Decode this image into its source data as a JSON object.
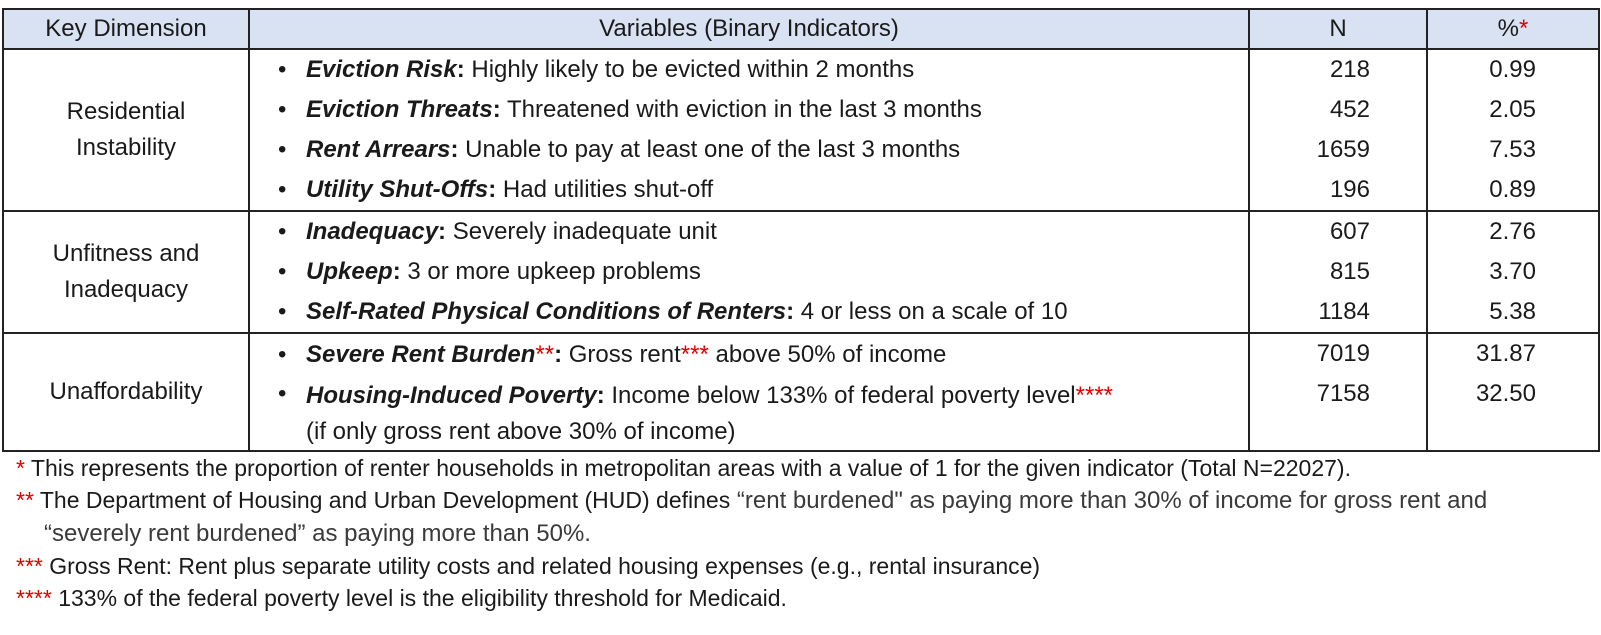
{
  "headers": {
    "key_dimension": "Key Dimension",
    "variables": "Variables (Binary Indicators)",
    "n": "N",
    "pct": "%",
    "pct_star": "*"
  },
  "groups": [
    {
      "dimension_line1": "Residential",
      "dimension_line2": "Instability",
      "rows": [
        {
          "term": "Eviction Risk",
          "desc": " Highly likely to be evicted within 2 months",
          "n": "218",
          "pct": "0.99"
        },
        {
          "term": "Eviction Threats",
          "desc": " Threatened with eviction in the last 3 months",
          "n": "452",
          "pct": "2.05"
        },
        {
          "term": "Rent Arrears",
          "desc": " Unable to pay at least one of the last 3 months",
          "n": "1659",
          "pct": "7.53"
        },
        {
          "term": "Utility Shut-Offs",
          "desc": " Had utilities shut-off",
          "n": "196",
          "pct": "0.89"
        }
      ]
    },
    {
      "dimension_line1": "Unfitness and",
      "dimension_line2": "Inadequacy",
      "rows": [
        {
          "term": "Inadequacy",
          "desc": " Severely inadequate unit",
          "n": "607",
          "pct": "2.76"
        },
        {
          "term": "Upkeep",
          "desc": " 3 or more upkeep problems",
          "n": "815",
          "pct": "3.70"
        },
        {
          "term": "Self-Rated Physical Conditions of Renters",
          "desc": " 4 or less on a scale of 10",
          "n": "1184",
          "pct": "5.38"
        }
      ]
    },
    {
      "dimension_line1": "Unaffordability",
      "rows": [
        {
          "term": "Severe Rent Burden",
          "term_star": "**",
          "desc_a": " Gross rent",
          "desc_star": "***",
          "desc_b": " above 50% of income",
          "n": "7019",
          "pct": "31.87"
        },
        {
          "term": "Housing-Induced Poverty",
          "desc_a": " Income below 133% of federal poverty level",
          "desc_star": "****",
          "desc_line2": "(if only gross rent above 30% of income)",
          "n": "7158",
          "pct": "32.50"
        }
      ]
    }
  ],
  "bullet": "•",
  "colon": ":",
  "notes": [
    {
      "mark": "*",
      "text": " This represents the proportion of renter households in metropolitan areas with a value of 1 for the given indicator (Total N=22027)."
    },
    {
      "mark": "**",
      "text_a": " The Department of Housing and Urban Development (HUD) defines",
      "text_b": " “rent burdened\" as paying more than 30% of income for gross rent and “severely rent burdened” as paying more than 50%."
    },
    {
      "mark": "***",
      "text": " Gross Rent: Rent plus separate utility costs and related housing expenses (e.g., rental insurance)"
    },
    {
      "mark": "****",
      "text": " 133% of the federal poverty level is the eligibility threshold for Medicaid."
    }
  ]
}
